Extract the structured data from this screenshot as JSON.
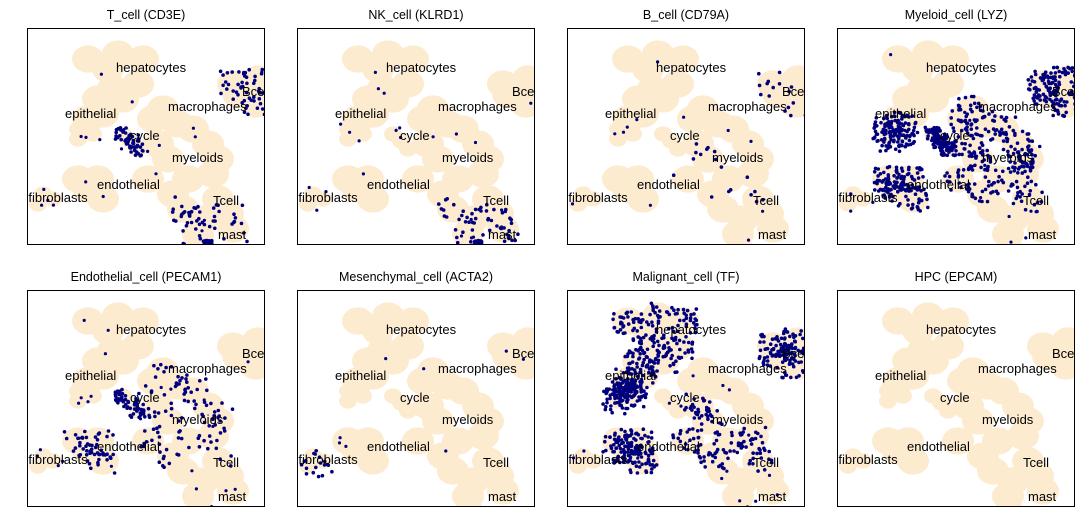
{
  "chart_data": [
    {
      "type": "scatter",
      "title": "T_cell (CD3E)",
      "gene": "CD3E",
      "highlight": [
        "tcell",
        "mast",
        "cycle",
        "bcell"
      ],
      "density": "medium"
    },
    {
      "type": "scatter",
      "title": "NK_cell (KLRD1)",
      "gene": "KLRD1",
      "highlight": [
        "tcell",
        "mast"
      ],
      "density": "medium"
    },
    {
      "type": "scatter",
      "title": "B_cell (CD79A)",
      "gene": "CD79A",
      "highlight": [
        "bcell",
        "myeloids"
      ],
      "density": "low"
    },
    {
      "type": "scatter",
      "title": "Myeloid_cell (LYZ)",
      "gene": "LYZ",
      "highlight": [
        "myeloids",
        "macrophages",
        "cycle",
        "epithelial",
        "endothelial",
        "bcell"
      ],
      "density": "high"
    },
    {
      "type": "scatter",
      "title": "Endothelial_cell (PECAM1)",
      "gene": "PECAM1",
      "highlight": [
        "endothelial",
        "myeloids",
        "macrophages",
        "cycle"
      ],
      "density": "medium"
    },
    {
      "type": "scatter",
      "title": "Mesenchymal_cell (ACTA2)",
      "gene": "ACTA2",
      "highlight": [
        "fibroblasts"
      ],
      "density": "low"
    },
    {
      "type": "scatter",
      "title": "Malignant_cell (TF)",
      "gene": "TF",
      "highlight": [
        "hepatocytes",
        "epithelial",
        "myeloids",
        "endothelial",
        "bcell"
      ],
      "density": "high"
    },
    {
      "type": "scatter",
      "title": "HPC (EPCAM)",
      "gene": "EPCAM",
      "highlight": [],
      "density": "none"
    }
  ],
  "cluster_labels": [
    "hepatocytes",
    "Bcell",
    "epithelial",
    "macrophages",
    "cycle",
    "myeloids",
    "endothelial",
    "fibroblasts",
    "Tcell",
    "mast"
  ],
  "colors": {
    "background_cells": "#fdebd0",
    "expressing_cells": "#00007f",
    "frame": "#000000"
  }
}
